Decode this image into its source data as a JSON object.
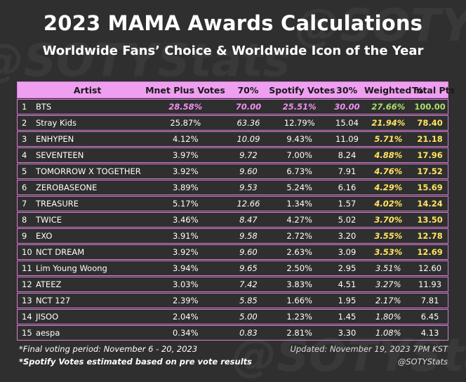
{
  "title": "2023 MAMA Awards Calculations",
  "subtitle": "Worldwide Fans’ Choice & Worldwide Icon of the Year",
  "watermark": "@SOTYStats",
  "colors": {
    "header": "#ee9ff0",
    "pink": "#f28ef2",
    "green": "#a8e06a",
    "yellow": "#ffe560",
    "background": "#2f2f2f"
  },
  "chart_data": {
    "type": "table",
    "columns": [
      "",
      "Artist",
      "Mnet Plus Votes",
      "70%",
      "Spotify Votes",
      "30%",
      "Weighted %",
      "Total Pts"
    ],
    "rows": [
      {
        "rank": "1",
        "artist": "BTS",
        "mnet": "28.58%",
        "m70": "70.00",
        "spotify": "25.51%",
        "s30": "30.00",
        "weighted": "27.66%",
        "total": "100.00"
      },
      {
        "rank": "2",
        "artist": "Stray Kids",
        "mnet": "25.87%",
        "m70": "63.36",
        "spotify": "12.79%",
        "s30": "15.04",
        "weighted": "21.94%",
        "total": "78.40"
      },
      {
        "rank": "3",
        "artist": "ENHYPEN",
        "mnet": "4.12%",
        "m70": "10.09",
        "spotify": "9.43%",
        "s30": "11.09",
        "weighted": "5.71%",
        "total": "21.18"
      },
      {
        "rank": "4",
        "artist": "SEVENTEEN",
        "mnet": "3.97%",
        "m70": "9.72",
        "spotify": "7.00%",
        "s30": "8.24",
        "weighted": "4.88%",
        "total": "17.96"
      },
      {
        "rank": "5",
        "artist": "TOMORROW X TOGETHER",
        "mnet": "3.92%",
        "m70": "9.60",
        "spotify": "6.73%",
        "s30": "7.91",
        "weighted": "4.76%",
        "total": "17.52"
      },
      {
        "rank": "6",
        "artist": "ZEROBASEONE",
        "mnet": "3.89%",
        "m70": "9.53",
        "spotify": "5.24%",
        "s30": "6.16",
        "weighted": "4.29%",
        "total": "15.69"
      },
      {
        "rank": "7",
        "artist": "TREASURE",
        "mnet": "5.17%",
        "m70": "12.66",
        "spotify": "1.34%",
        "s30": "1.57",
        "weighted": "4.02%",
        "total": "14.24"
      },
      {
        "rank": "8",
        "artist": "TWICE",
        "mnet": "3.46%",
        "m70": "8.47",
        "spotify": "4.27%",
        "s30": "5.02",
        "weighted": "3.70%",
        "total": "13.50"
      },
      {
        "rank": "9",
        "artist": "EXO",
        "mnet": "3.91%",
        "m70": "9.58",
        "spotify": "2.72%",
        "s30": "3.20",
        "weighted": "3.55%",
        "total": "12.78"
      },
      {
        "rank": "10",
        "artist": "NCT DREAM",
        "mnet": "3.92%",
        "m70": "9.60",
        "spotify": "2.63%",
        "s30": "3.09",
        "weighted": "3.53%",
        "total": "12.69"
      },
      {
        "rank": "11",
        "artist": "Lim Young Woong",
        "mnet": "3.94%",
        "m70": "9.65",
        "spotify": "2.50%",
        "s30": "2.95",
        "weighted": "3.51%",
        "total": "12.60"
      },
      {
        "rank": "12",
        "artist": "ATEEZ",
        "mnet": "3.03%",
        "m70": "7.42",
        "spotify": "3.83%",
        "s30": "4.51",
        "weighted": "3.27%",
        "total": "11.93"
      },
      {
        "rank": "13",
        "artist": "NCT 127",
        "mnet": "2.39%",
        "m70": "5.85",
        "spotify": "1.66%",
        "s30": "1.95",
        "weighted": "2.17%",
        "total": "7.81"
      },
      {
        "rank": "14",
        "artist": "JISOO",
        "mnet": "2.04%",
        "m70": "5.00",
        "spotify": "1.23%",
        "s30": "1.45",
        "weighted": "1.80%",
        "total": "6.45"
      },
      {
        "rank": "15",
        "artist": "aespa",
        "mnet": "0.34%",
        "m70": "0.83",
        "spotify": "2.81%",
        "s30": "3.30",
        "weighted": "1.08%",
        "total": "4.13"
      }
    ]
  },
  "footer": {
    "period": "*Final voting period: November 6 - 20, 2023",
    "note": "*Spotify Votes estimated based on pre vote results",
    "updated": "Updated: November 19, 2023 7PM KST",
    "handle": "@SOTYStats"
  }
}
